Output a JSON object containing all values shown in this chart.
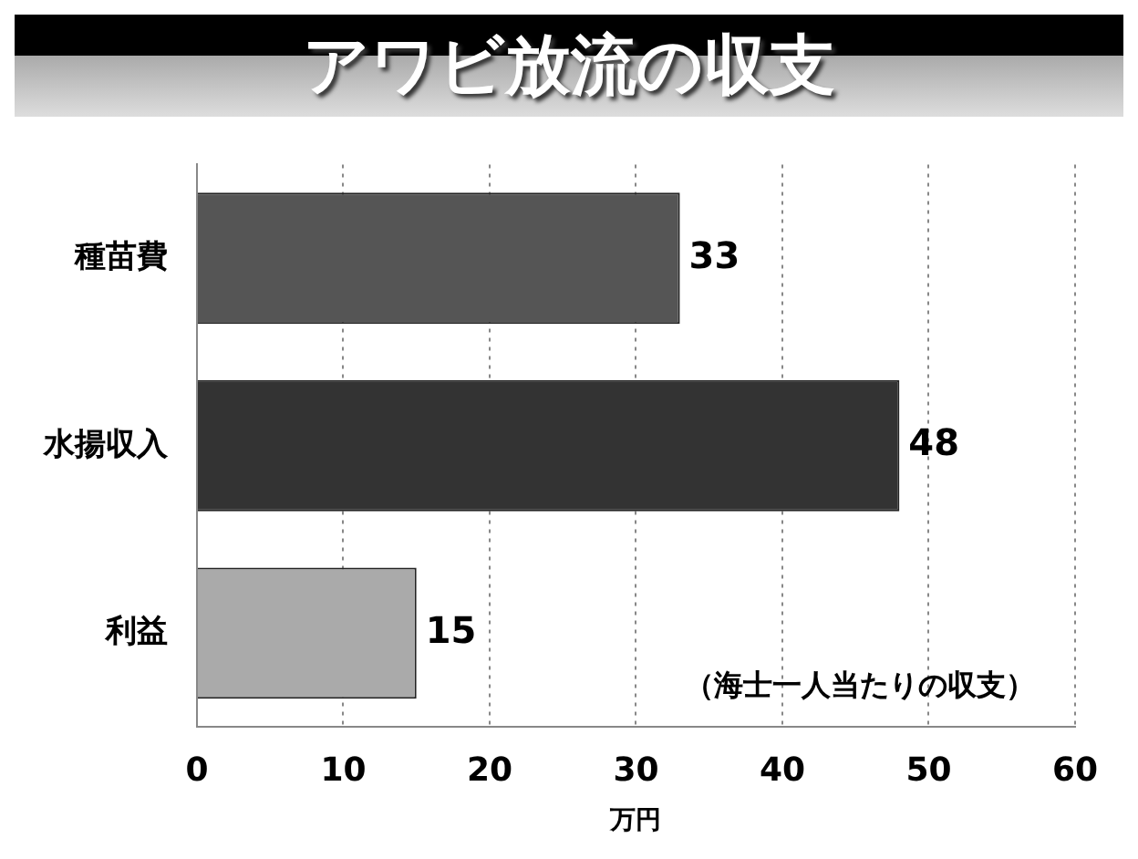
{
  "chart_data": {
    "type": "bar",
    "orientation": "horizontal",
    "title": "アワビ放流の収支",
    "categories": [
      "種苗費",
      "水揚収入",
      "利益"
    ],
    "values": [
      33,
      48,
      15
    ],
    "colors": [
      "#555555",
      "#333333",
      "#aaaaaa"
    ],
    "xlim": [
      0,
      60
    ],
    "xticks": [
      0,
      10,
      20,
      30,
      40,
      50,
      60
    ],
    "xlabel": "万円",
    "grid": "x",
    "data_labels": true,
    "legend": false,
    "annotations": [
      "（海士一人当たりの収支）"
    ]
  }
}
